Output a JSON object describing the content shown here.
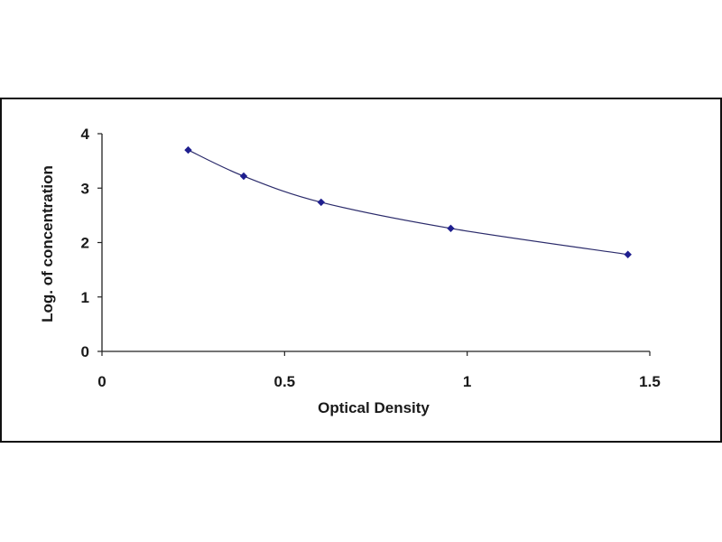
{
  "chart_data": {
    "type": "scatter",
    "title": "",
    "xlabel": "Optical Density",
    "ylabel": "Log. of concentration",
    "xlim": [
      0,
      1.5
    ],
    "ylim": [
      0,
      4
    ],
    "x_ticks": [
      "0",
      "0.5",
      "1",
      "1.5"
    ],
    "y_ticks": [
      "0",
      "1",
      "2",
      "3",
      "4"
    ],
    "grid": false,
    "legend": "none",
    "marker_color": "#1f1f8f",
    "line_color": "#2b2b6b",
    "series": [
      {
        "x": [
          0.236,
          0.388,
          0.6,
          0.955,
          1.44
        ],
        "y": [
          3.7,
          3.22,
          2.74,
          2.26,
          1.78
        ]
      }
    ]
  }
}
